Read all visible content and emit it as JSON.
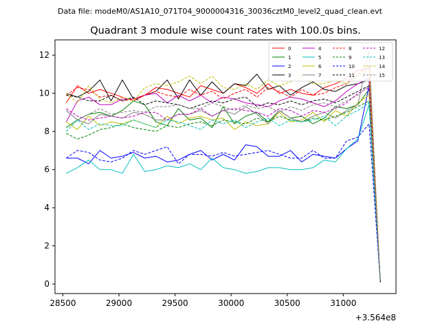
{
  "header": {
    "datafile": "Data file: modeM0/AS1A10_071T04_9000004316_30036cztM0_level2_quad_clean.evt",
    "title": "Quadrant 3 module wise count rates with 100.0s bins."
  },
  "chart_data": {
    "type": "line",
    "x_offset_label": "+3.564e8",
    "xlim": [
      28430,
      31470
    ],
    "ylim": [
      -0.5,
      12.8
    ],
    "x_ticks": [
      28500,
      29000,
      29500,
      30000,
      30500,
      31000
    ],
    "y_ticks": [
      0,
      2,
      4,
      6,
      8,
      10,
      12
    ],
    "x": [
      28530,
      28630,
      28730,
      28830,
      28930,
      29030,
      29130,
      29230,
      29330,
      29430,
      29530,
      29630,
      29730,
      29830,
      29930,
      30030,
      30130,
      30230,
      30330,
      30430,
      30530,
      30630,
      30730,
      30830,
      30930,
      31030,
      31130,
      31230,
      31330
    ],
    "legend": {
      "position": "top-right",
      "columns": 4
    },
    "series": [
      {
        "name": "0",
        "color": "#ff0000",
        "dash": "solid",
        "values": [
          9.5,
          10.4,
          10.0,
          10.2,
          10.0,
          9.8,
          9.6,
          9.9,
          10.3,
          10.2,
          10.0,
          9.8,
          10.4,
          10.2,
          10.0,
          10.5,
          10.3,
          10.0,
          10.5,
          10.0,
          10.2,
          10.0,
          9.9,
          10.3,
          10.5,
          10.8,
          11.2,
          11.3,
          0.1
        ]
      },
      {
        "name": "1",
        "color": "#008000",
        "dash": "solid",
        "values": [
          8.2,
          8.6,
          8.9,
          9.0,
          8.8,
          9.1,
          9.6,
          9.4,
          8.5,
          8.3,
          9.2,
          8.6,
          8.7,
          8.2,
          9.3,
          8.4,
          8.8,
          9.0,
          8.5,
          9.1,
          8.7,
          8.8,
          8.4,
          8.7,
          9.3,
          9.2,
          9.4,
          10.2,
          0.1
        ]
      },
      {
        "name": "2",
        "color": "#0000ff",
        "dash": "solid",
        "values": [
          6.6,
          6.6,
          6.3,
          7.0,
          6.6,
          6.7,
          6.9,
          6.6,
          6.7,
          6.4,
          6.5,
          6.8,
          7.0,
          6.5,
          6.8,
          6.5,
          7.3,
          7.2,
          6.7,
          6.7,
          7.0,
          6.4,
          6.8,
          6.7,
          6.6,
          7.1,
          7.5,
          10.4,
          0.2
        ]
      },
      {
        "name": "3",
        "color": "#000000",
        "dash": "solid",
        "values": [
          10.0,
          9.8,
          10.1,
          10.7,
          9.6,
          10.7,
          9.7,
          9.9,
          10.1,
          10.7,
          9.7,
          10.7,
          9.9,
          10.6,
          10.0,
          10.5,
          10.4,
          11.0,
          10.2,
          10.4,
          9.9,
          10.3,
          10.6,
          10.2,
          10.1,
          10.4,
          10.5,
          10.7,
          0.1
        ]
      },
      {
        "name": "4",
        "color": "#bf00bf",
        "dash": "solid",
        "values": [
          8.5,
          9.6,
          9.8,
          9.4,
          9.4,
          9.7,
          9.7,
          9.9,
          10.0,
          9.5,
          9.9,
          9.6,
          9.9,
          9.5,
          9.8,
          9.7,
          9.5,
          9.4,
          9.3,
          9.6,
          9.8,
          9.7,
          9.5,
          9.3,
          9.6,
          10.1,
          10.5,
          10.8,
          0.2
        ]
      },
      {
        "name": "5",
        "color": "#00bfbf",
        "dash": "solid",
        "values": [
          5.8,
          6.1,
          6.5,
          6.0,
          6.0,
          5.8,
          6.8,
          5.9,
          6.0,
          6.2,
          6.1,
          6.3,
          6.0,
          6.6,
          6.1,
          6.0,
          5.8,
          5.9,
          6.1,
          6.1,
          6.0,
          6.0,
          6.1,
          6.5,
          6.4,
          7.1,
          7.6,
          9.4,
          0.1
        ]
      },
      {
        "name": "6",
        "color": "#bfbf00",
        "dash": "solid",
        "values": [
          8.5,
          8.1,
          8.8,
          8.3,
          8.5,
          8.4,
          8.6,
          8.4,
          8.2,
          8.8,
          8.4,
          8.7,
          8.8,
          8.6,
          8.7,
          8.1,
          8.5,
          8.3,
          8.4,
          9.0,
          8.5,
          8.6,
          9.0,
          8.5,
          9.1,
          8.8,
          9.5,
          9.9,
          0.2
        ]
      },
      {
        "name": "7",
        "color": "#808080",
        "dash": "solid",
        "values": [
          9.1,
          8.6,
          8.4,
          8.9,
          8.8,
          8.7,
          9.0,
          8.9,
          8.6,
          8.6,
          8.9,
          8.9,
          9.1,
          8.8,
          9.1,
          8.9,
          9.3,
          8.9,
          8.4,
          9.1,
          8.7,
          8.5,
          8.8,
          9.0,
          8.7,
          9.1,
          9.4,
          12.2,
          0.1
        ]
      },
      {
        "name": "8",
        "color": "#ff0000",
        "dash": "dashed",
        "values": [
          9.9,
          10.3,
          10.2,
          9.8,
          9.9,
          9.6,
          9.7,
          9.9,
          10.1,
          9.9,
          9.8,
          10.2,
          9.9,
          10.1,
          9.7,
          10.0,
          10.2,
          9.8,
          10.3,
          10.1,
          9.8,
          10.2,
          9.9,
          10.0,
          10.3,
          10.5,
          11.0,
          11.4,
          0.1
        ]
      },
      {
        "name": "9",
        "color": "#008000",
        "dash": "dashed",
        "values": [
          7.9,
          7.6,
          7.8,
          8.1,
          8.2,
          8.4,
          8.2,
          8.1,
          8.0,
          8.3,
          8.2,
          8.4,
          8.5,
          8.3,
          8.6,
          8.5,
          8.4,
          8.7,
          8.5,
          8.8,
          8.6,
          8.5,
          8.7,
          8.6,
          8.8,
          9.0,
          9.3,
          9.6,
          0.1
        ]
      },
      {
        "name": "10",
        "color": "#0000ff",
        "dash": "dashed",
        "values": [
          6.6,
          7.0,
          6.9,
          6.5,
          6.4,
          6.6,
          7.0,
          6.8,
          7.0,
          7.2,
          6.3,
          6.8,
          6.8,
          6.7,
          6.9,
          6.7,
          6.8,
          6.9,
          7.0,
          6.8,
          6.6,
          6.6,
          7.0,
          6.6,
          6.6,
          7.5,
          7.7,
          8.4,
          0.1
        ]
      },
      {
        "name": "11",
        "color": "#000000",
        "dash": "dashed",
        "values": [
          9.9,
          9.8,
          9.6,
          9.6,
          9.9,
          9.6,
          9.8,
          9.4,
          9.6,
          9.5,
          9.4,
          9.2,
          9.4,
          9.6,
          9.5,
          9.7,
          9.8,
          9.3,
          9.5,
          9.4,
          9.6,
          9.4,
          9.6,
          9.7,
          9.5,
          9.8,
          10.1,
          10.4,
          0.1
        ]
      },
      {
        "name": "12",
        "color": "#bf00bf",
        "dash": "dashed",
        "values": [
          9.2,
          8.8,
          8.6,
          8.7,
          8.8,
          8.7,
          8.8,
          9.0,
          9.0,
          8.6,
          8.9,
          8.9,
          9.2,
          8.8,
          9.1,
          9.2,
          9.1,
          9.0,
          8.8,
          9.2,
          9.1,
          8.8,
          9.1,
          9.0,
          9.2,
          9.5,
          10.0,
          10.3,
          0.2
        ]
      },
      {
        "name": "13",
        "color": "#00bfbf",
        "dash": "dashed",
        "values": [
          8.0,
          8.6,
          8.1,
          8.4,
          8.3,
          8.3,
          8.6,
          8.4,
          8.2,
          8.6,
          8.5,
          8.3,
          8.1,
          8.6,
          8.4,
          8.6,
          8.2,
          8.5,
          8.7,
          8.3,
          8.6,
          8.5,
          8.6,
          8.8,
          8.3,
          8.8,
          9.1,
          9.5,
          0.2
        ]
      },
      {
        "name": "14",
        "color": "#bfbf00",
        "dash": "dashed",
        "values": [
          10.0,
          9.5,
          10.4,
          9.7,
          9.5,
          9.8,
          9.6,
          10.3,
          10.5,
          10.4,
          10.6,
          10.9,
          10.5,
          10.9,
          10.3,
          10.2,
          10.5,
          10.2,
          10.7,
          10.4,
          10.6,
          10.9,
          10.5,
          10.5,
          10.7,
          10.5,
          10.9,
          11.3,
          0.2
        ]
      },
      {
        "name": "15",
        "color": "#808080",
        "dash": "dashed",
        "values": [
          9.1,
          8.6,
          8.9,
          9.2,
          8.9,
          9.0,
          9.1,
          9.0,
          9.3,
          9.3,
          9.4,
          9.2,
          9.2,
          9.5,
          9.3,
          9.1,
          9.4,
          9.2,
          9.3,
          9.0,
          9.3,
          9.1,
          9.4,
          9.5,
          9.3,
          9.6,
          9.9,
          10.4,
          0.2
        ]
      }
    ]
  }
}
